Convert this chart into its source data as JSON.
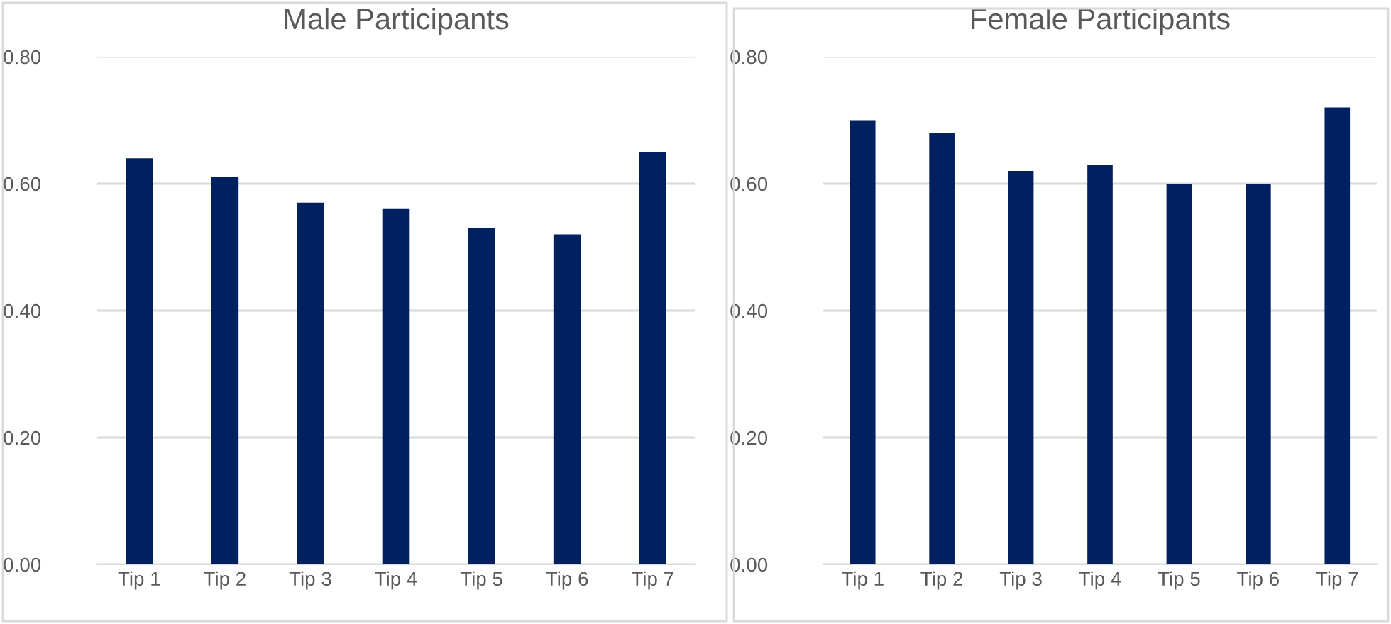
{
  "chart_data": [
    {
      "type": "bar",
      "title": "Male Participants",
      "categories": [
        "Tip 1",
        "Tip 2",
        "Tip 3",
        "Tip 4",
        "Tip 5",
        "Tip 6",
        "Tip 7"
      ],
      "values": [
        0.64,
        0.61,
        0.57,
        0.56,
        0.53,
        0.52,
        0.65
      ],
      "color": "#002060",
      "ylim": [
        0,
        0.8
      ],
      "yticks": [
        {
          "value": 0,
          "label": "0.00"
        },
        {
          "value": 0.2,
          "label": "0.20"
        },
        {
          "value": 0.4,
          "label": "0.40"
        },
        {
          "value": 0.6,
          "label": "0.60"
        },
        {
          "value": 0.8,
          "label": "0.80"
        }
      ],
      "grid": "y"
    },
    {
      "type": "bar",
      "title": "Female Participants",
      "categories": [
        "Tip 1",
        "Tip 2",
        "Tip 3",
        "Tip 4",
        "Tip 5",
        "Tip 6",
        "Tip 7"
      ],
      "values": [
        0.7,
        0.68,
        0.62,
        0.63,
        0.6,
        0.6,
        0.72
      ],
      "color": "#002060",
      "ylim": [
        0,
        0.8
      ],
      "yticks": [
        {
          "value": 0,
          "label": "0.00"
        },
        {
          "value": 0.2,
          "label": "0.20"
        },
        {
          "value": 0.4,
          "label": "0.40"
        },
        {
          "value": 0.6,
          "label": "0.60"
        },
        {
          "value": 0.8,
          "label": "0.80"
        }
      ],
      "grid": "y"
    }
  ]
}
